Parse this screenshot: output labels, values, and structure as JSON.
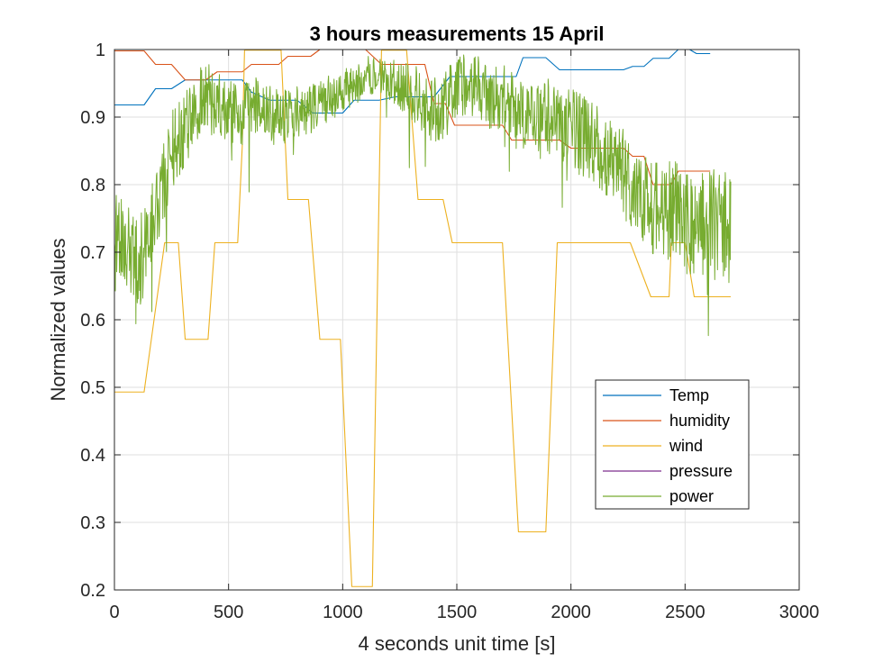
{
  "chart_data": {
    "type": "line",
    "title": "3 hours measurements 15 April",
    "xlabel": "4 seconds unit time [s]",
    "ylabel": "Normalized values",
    "xlim": [
      0,
      3000
    ],
    "ylim": [
      0.2,
      1
    ],
    "x_ticks": [
      "0",
      "500",
      "1000",
      "1500",
      "2000",
      "2500",
      "3000"
    ],
    "y_ticks": [
      "0.2",
      "0.3",
      "0.4",
      "0.5",
      "0.6",
      "0.7",
      "0.8",
      "0.9",
      "1"
    ],
    "x_tick_values": [
      0,
      500,
      1000,
      1500,
      2000,
      2500,
      3000
    ],
    "y_tick_values": [
      0.2,
      0.3,
      0.4,
      0.5,
      0.6,
      0.7,
      0.8,
      0.9,
      1.0
    ],
    "grid": true,
    "legend_position": "bottom-right",
    "series": [
      {
        "name": "Temp",
        "color": "#0072BD",
        "points": [
          [
            0,
            0.918
          ],
          [
            30,
            0.918
          ],
          [
            130,
            0.918
          ],
          [
            180,
            0.942
          ],
          [
            250,
            0.942
          ],
          [
            310,
            0.955
          ],
          [
            560,
            0.955
          ],
          [
            600,
            0.937
          ],
          [
            680,
            0.925
          ],
          [
            800,
            0.925
          ],
          [
            870,
            0.906
          ],
          [
            1000,
            0.906
          ],
          [
            1050,
            0.925
          ],
          [
            1160,
            0.925
          ],
          [
            1230,
            0.93
          ],
          [
            1400,
            0.93
          ],
          [
            1470,
            0.96
          ],
          [
            1760,
            0.96
          ],
          [
            1790,
            0.988
          ],
          [
            1890,
            0.988
          ],
          [
            1950,
            0.97
          ],
          [
            2230,
            0.97
          ],
          [
            2270,
            0.975
          ],
          [
            2320,
            0.975
          ],
          [
            2360,
            0.987
          ],
          [
            2430,
            0.987
          ],
          [
            2470,
            1.0
          ],
          [
            2520,
            1.0
          ],
          [
            2550,
            0.994
          ],
          [
            2610,
            0.994
          ]
        ]
      },
      {
        "name": "humidity",
        "color": "#D95319",
        "points": [
          [
            0,
            0.998
          ],
          [
            130,
            0.998
          ],
          [
            180,
            0.978
          ],
          [
            250,
            0.978
          ],
          [
            310,
            0.955
          ],
          [
            400,
            0.955
          ],
          [
            450,
            0.967
          ],
          [
            540,
            0.967
          ],
          [
            560,
            0.967
          ],
          [
            600,
            0.978
          ],
          [
            720,
            0.978
          ],
          [
            760,
            0.99
          ],
          [
            860,
            0.99
          ],
          [
            900,
            1.0
          ],
          [
            1100,
            1.0
          ],
          [
            1170,
            0.978
          ],
          [
            1360,
            0.978
          ],
          [
            1400,
            0.92
          ],
          [
            1450,
            0.92
          ],
          [
            1490,
            0.888
          ],
          [
            1700,
            0.888
          ],
          [
            1740,
            0.866
          ],
          [
            1950,
            0.866
          ],
          [
            2000,
            0.854
          ],
          [
            2230,
            0.854
          ],
          [
            2270,
            0.842
          ],
          [
            2320,
            0.842
          ],
          [
            2360,
            0.8
          ],
          [
            2440,
            0.8
          ],
          [
            2470,
            0.82
          ],
          [
            2610,
            0.82
          ]
        ]
      },
      {
        "name": "wind",
        "color": "#EDB120",
        "points": [
          [
            0,
            0.493
          ],
          [
            130,
            0.493
          ],
          [
            220,
            0.714
          ],
          [
            280,
            0.714
          ],
          [
            310,
            0.571
          ],
          [
            410,
            0.571
          ],
          [
            440,
            0.714
          ],
          [
            540,
            0.714
          ],
          [
            560,
            0.857
          ],
          [
            570,
            0.999
          ],
          [
            600,
            0.999
          ],
          [
            730,
            0.999
          ],
          [
            760,
            0.778
          ],
          [
            850,
            0.778
          ],
          [
            900,
            0.571
          ],
          [
            990,
            0.571
          ],
          [
            1040,
            0.205
          ],
          [
            1130,
            0.205
          ],
          [
            1170,
            0.999
          ],
          [
            1280,
            0.999
          ],
          [
            1330,
            0.778
          ],
          [
            1440,
            0.778
          ],
          [
            1480,
            0.714
          ],
          [
            1700,
            0.714
          ],
          [
            1770,
            0.286
          ],
          [
            1890,
            0.286
          ],
          [
            1940,
            0.714
          ],
          [
            2200,
            0.714
          ],
          [
            2260,
            0.714
          ],
          [
            2350,
            0.634
          ],
          [
            2430,
            0.634
          ],
          [
            2440,
            0.714
          ],
          [
            2500,
            0.714
          ],
          [
            2540,
            0.634
          ],
          [
            2620,
            0.634
          ],
          [
            2700,
            0.634
          ]
        ]
      },
      {
        "name": "pressure",
        "color": "#7E2F8E",
        "points": [
          [
            0,
            1.0
          ],
          [
            30,
            1.0
          ],
          [
            2610,
            1.0
          ]
        ]
      },
      {
        "name": "power",
        "color": "#77AC30",
        "envelope": [
          [
            0,
            0.72
          ],
          [
            50,
            0.7
          ],
          [
            100,
            0.68
          ],
          [
            150,
            0.72
          ],
          [
            200,
            0.78
          ],
          [
            250,
            0.85
          ],
          [
            300,
            0.88
          ],
          [
            350,
            0.91
          ],
          [
            400,
            0.93
          ],
          [
            450,
            0.92
          ],
          [
            500,
            0.91
          ],
          [
            550,
            0.9
          ],
          [
            600,
            0.91
          ],
          [
            650,
            0.92
          ],
          [
            700,
            0.9
          ],
          [
            750,
            0.9
          ],
          [
            800,
            0.91
          ],
          [
            850,
            0.91
          ],
          [
            900,
            0.92
          ],
          [
            950,
            0.93
          ],
          [
            1000,
            0.94
          ],
          [
            1050,
            0.95
          ],
          [
            1100,
            0.96
          ],
          [
            1150,
            0.965
          ],
          [
            1200,
            0.96
          ],
          [
            1250,
            0.95
          ],
          [
            1300,
            0.94
          ],
          [
            1350,
            0.92
          ],
          [
            1400,
            0.91
          ],
          [
            1450,
            0.92
          ],
          [
            1500,
            0.94
          ],
          [
            1550,
            0.95
          ],
          [
            1600,
            0.94
          ],
          [
            1650,
            0.93
          ],
          [
            1700,
            0.93
          ],
          [
            1750,
            0.92
          ],
          [
            1800,
            0.9
          ],
          [
            1850,
            0.89
          ],
          [
            1900,
            0.9
          ],
          [
            1950,
            0.9
          ],
          [
            2000,
            0.89
          ],
          [
            2050,
            0.87
          ],
          [
            2100,
            0.86
          ],
          [
            2150,
            0.84
          ],
          [
            2200,
            0.82
          ],
          [
            2250,
            0.81
          ],
          [
            2300,
            0.79
          ],
          [
            2350,
            0.77
          ],
          [
            2400,
            0.76
          ],
          [
            2450,
            0.76
          ],
          [
            2500,
            0.75
          ],
          [
            2550,
            0.74
          ],
          [
            2600,
            0.74
          ],
          [
            2650,
            0.74
          ],
          [
            2700,
            0.73
          ]
        ],
        "noise_amplitude": [
          [
            0,
            0.08
          ],
          [
            200,
            0.06
          ],
          [
            600,
            0.045
          ],
          [
            900,
            0.035
          ],
          [
            1150,
            0.03
          ],
          [
            1400,
            0.05
          ],
          [
            1700,
            0.05
          ],
          [
            2000,
            0.06
          ],
          [
            2300,
            0.07
          ],
          [
            2700,
            0.09
          ]
        ],
        "sample_count": 2700
      }
    ]
  }
}
